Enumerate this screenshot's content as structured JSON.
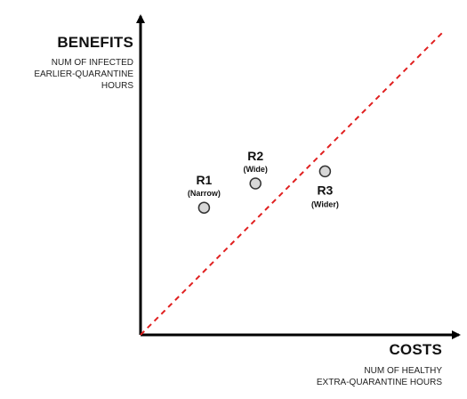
{
  "chart_data": {
    "type": "scatter",
    "title": "",
    "x_axis": {
      "label": "COSTS",
      "sublabel_lines": [
        "NUM OF HEALTHY",
        "EXTRA-QUARANTINE HOURS"
      ]
    },
    "y_axis": {
      "label": "BENEFITS",
      "sublabel_lines": [
        "NUM OF INFECTED",
        "EARLIER-QUARANTINE",
        "HOURS"
      ]
    },
    "xlim": [
      0,
      1
    ],
    "ylim": [
      0,
      1
    ],
    "ticks": "none",
    "grid": false,
    "reference_line": {
      "type": "diagonal",
      "style": "dashed",
      "color": "#e02020",
      "from": [
        0,
        0
      ],
      "to": [
        1,
        1
      ]
    },
    "points": [
      {
        "id": "R1",
        "label": "R1",
        "sublabel": "(Narrow)",
        "x": 0.21,
        "y": 0.42,
        "label_position": "above"
      },
      {
        "id": "R2",
        "label": "R2",
        "sublabel": "(Wide)",
        "x": 0.38,
        "y": 0.5,
        "label_position": "above"
      },
      {
        "id": "R3",
        "label": "R3",
        "sublabel": "(Wider)",
        "x": 0.61,
        "y": 0.54,
        "label_position": "below"
      }
    ],
    "colors": {
      "axes": "#000000",
      "point_fill": "#d7d7d7",
      "point_stroke": "#333333",
      "text": "#111111"
    }
  }
}
